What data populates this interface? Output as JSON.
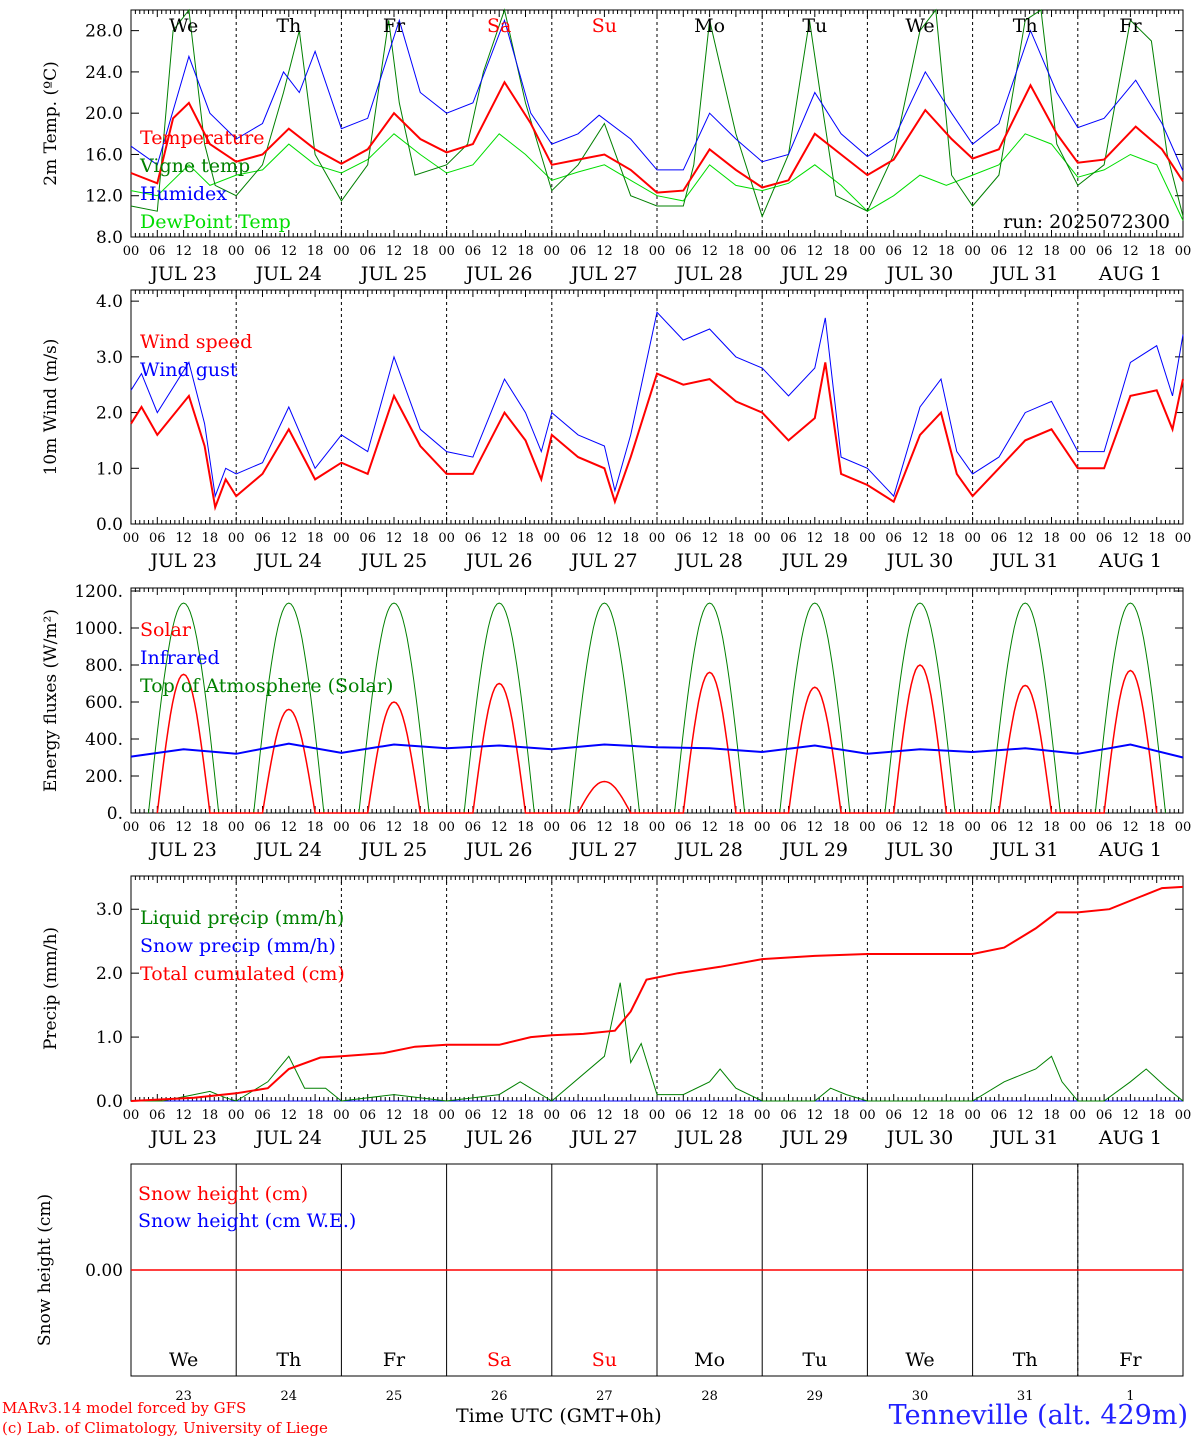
{
  "colors": {
    "temperature": "#ff0000",
    "vigne": "#008000",
    "humidex": "#0000ff",
    "dewpoint": "#00dd00",
    "wind_speed": "#ff0000",
    "wind_gust": "#0000ff",
    "solar": "#ff0000",
    "infrared": "#0000ff",
    "toa": "#008000",
    "liquid": "#008000",
    "snow_precip": "#0000ff",
    "cumulated": "#ff0000",
    "snow_h": "#ff0000",
    "weekend": "#ff0000",
    "location": "#2222ff",
    "credits": "#ff0000"
  },
  "time_axis": {
    "hour_labels": [
      "00",
      "06",
      "12",
      "18"
    ],
    "last_label": "00",
    "date_labels": [
      "JUL 23",
      "JUL 24",
      "JUL 25",
      "JUL 26",
      "JUL 27",
      "JUL 28",
      "JUL 29",
      "JUL 30",
      "JUL 31",
      "AUG  1"
    ],
    "weekdays": [
      "We",
      "Th",
      "Fr",
      "Sa",
      "Su",
      "Mo",
      "Tu",
      "We",
      "Th",
      "Fr"
    ],
    "weekend_days": [
      "Sa",
      "Su"
    ],
    "day_numbers": [
      "23",
      "24",
      "25",
      "26",
      "27",
      "28",
      "29",
      "30",
      "31",
      "1"
    ],
    "xlabel": "Time UTC (GMT+0h)"
  },
  "chart_data": [
    {
      "type": "line",
      "ylabel": "2m Temp. (ºC)",
      "ylim": [
        8,
        30
      ],
      "yticks": [
        "8.0",
        "12.0",
        "16.0",
        "20.0",
        "24.0",
        "28.0"
      ],
      "x_unit": "days from JUL 23 00 UTC",
      "run_label": "run: 2025072300",
      "series": [
        {
          "name": "Temperature",
          "key": "temperature",
          "x": [
            0,
            0.25,
            0.4,
            0.55,
            0.75,
            1.0,
            1.25,
            1.5,
            1.75,
            2.0,
            2.25,
            2.5,
            2.75,
            3.0,
            3.25,
            3.55,
            3.8,
            4.0,
            4.25,
            4.5,
            4.75,
            5.0,
            5.25,
            5.5,
            5.75,
            6.0,
            6.25,
            6.5,
            6.75,
            7.0,
            7.25,
            7.55,
            7.8,
            8.0,
            8.25,
            8.55,
            8.8,
            9.0,
            9.25,
            9.55,
            9.8,
            10.0
          ],
          "y": [
            14.2,
            13.2,
            19.5,
            21,
            17,
            15.3,
            16,
            18.5,
            16.5,
            15.1,
            16.5,
            20,
            17.5,
            16.2,
            17,
            23,
            19,
            15,
            15.5,
            16,
            14.5,
            12.3,
            12.5,
            16.5,
            14.5,
            12.8,
            13.5,
            18,
            16,
            14,
            15.5,
            20.3,
            17.5,
            15.6,
            16.5,
            22.7,
            18,
            15.2,
            15.5,
            18.7,
            16.5,
            13.4
          ]
        },
        {
          "name": "Vigne temp",
          "key": "vigne",
          "x": [
            0,
            0.25,
            0.4,
            0.55,
            0.7,
            0.8,
            1.0,
            1.25,
            1.45,
            1.6,
            1.75,
            2.0,
            2.25,
            2.45,
            2.55,
            2.7,
            3.0,
            3.2,
            3.35,
            3.55,
            3.75,
            4.0,
            4.25,
            4.5,
            4.75,
            5.0,
            5.25,
            5.35,
            5.5,
            5.75,
            6.0,
            6.25,
            6.45,
            6.55,
            6.7,
            7.0,
            7.25,
            7.5,
            7.65,
            7.8,
            8.0,
            8.25,
            8.5,
            8.65,
            8.8,
            9.0,
            9.25,
            9.5,
            9.7,
            9.85,
            10.0
          ],
          "y": [
            11,
            10.5,
            28,
            30,
            17,
            13,
            12,
            15,
            22,
            28,
            16,
            11.5,
            15,
            29,
            21,
            14,
            15,
            17,
            24,
            30,
            21,
            12.5,
            15,
            19,
            12,
            11,
            11,
            15,
            29,
            18,
            10,
            16,
            29,
            22,
            12,
            10.5,
            16,
            28,
            30,
            14,
            11,
            14,
            29,
            30,
            17,
            13,
            15,
            29,
            27,
            16,
            10
          ]
        },
        {
          "name": "Humidex",
          "key": "humidex",
          "x": [
            0,
            0.25,
            0.55,
            0.75,
            1.0,
            1.25,
            1.45,
            1.6,
            1.75,
            2.0,
            2.25,
            2.55,
            2.75,
            3.0,
            3.25,
            3.55,
            3.8,
            4.0,
            4.25,
            4.45,
            4.75,
            5.0,
            5.25,
            5.5,
            5.75,
            6.0,
            6.25,
            6.5,
            6.75,
            7.0,
            7.25,
            7.55,
            7.8,
            8.0,
            8.25,
            8.55,
            8.8,
            9.0,
            9.25,
            9.55,
            9.8,
            10.0
          ],
          "y": [
            16.8,
            15,
            25.5,
            20,
            17.5,
            19,
            24,
            22,
            26,
            18.5,
            19.5,
            29,
            22,
            20,
            21,
            29,
            20,
            17,
            18,
            19.8,
            17.5,
            14.5,
            14.5,
            20,
            17.5,
            15.3,
            16,
            22,
            18,
            15.8,
            17.5,
            24,
            20,
            17,
            19,
            28,
            22,
            18.6,
            19.5,
            23.2,
            19,
            14.4
          ]
        },
        {
          "name": "DewPoint Temp",
          "key": "dewpoint",
          "x": [
            0,
            0.25,
            0.55,
            0.75,
            1.0,
            1.25,
            1.5,
            1.75,
            2.0,
            2.25,
            2.5,
            2.75,
            3.0,
            3.25,
            3.5,
            3.75,
            4.0,
            4.25,
            4.5,
            4.75,
            5.0,
            5.25,
            5.5,
            5.75,
            6.0,
            6.25,
            6.5,
            6.75,
            7.0,
            7.25,
            7.5,
            7.75,
            8.0,
            8.25,
            8.5,
            8.75,
            9.0,
            9.25,
            9.5,
            9.75,
            10.0
          ],
          "y": [
            12.5,
            12,
            15,
            13,
            14,
            14.5,
            17,
            15,
            14.2,
            15.5,
            18,
            16,
            14.2,
            15,
            18,
            16,
            13.5,
            14.3,
            15,
            13.5,
            12,
            11.5,
            15,
            13,
            12.5,
            13.2,
            15,
            13,
            10.5,
            12,
            14,
            13,
            14,
            15,
            18,
            17,
            13.8,
            14.5,
            16,
            15,
            9.6
          ]
        }
      ]
    },
    {
      "type": "line",
      "ylabel": "10m Wind (m/s)",
      "ylim": [
        0,
        4
      ],
      "yticks": [
        "0.0",
        "1.0",
        "2.0",
        "3.0",
        "4.0"
      ],
      "series": [
        {
          "name": "Wind speed",
          "key": "wind_speed",
          "x": [
            0,
            0.1,
            0.25,
            0.55,
            0.7,
            0.8,
            0.9,
            1.0,
            1.25,
            1.5,
            1.75,
            2.0,
            2.25,
            2.5,
            2.75,
            3.0,
            3.25,
            3.55,
            3.75,
            3.9,
            4.0,
            4.25,
            4.5,
            4.6,
            4.75,
            5.0,
            5.25,
            5.5,
            5.75,
            6.0,
            6.25,
            6.5,
            6.6,
            6.75,
            7.0,
            7.25,
            7.5,
            7.7,
            7.85,
            8.0,
            8.25,
            8.5,
            8.75,
            9.0,
            9.25,
            9.5,
            9.75,
            9.9,
            10.0
          ],
          "y": [
            1.8,
            2.1,
            1.6,
            2.3,
            1.4,
            0.3,
            0.8,
            0.5,
            0.9,
            1.7,
            0.8,
            1.1,
            0.9,
            2.3,
            1.4,
            0.9,
            0.9,
            2.0,
            1.5,
            0.8,
            1.6,
            1.2,
            1.0,
            0.4,
            1.2,
            2.7,
            2.5,
            2.6,
            2.2,
            2.0,
            1.5,
            1.9,
            2.9,
            0.9,
            0.7,
            0.4,
            1.6,
            2.0,
            0.9,
            0.5,
            1.0,
            1.5,
            1.7,
            1.0,
            1.0,
            2.3,
            2.4,
            1.7,
            2.6
          ]
        },
        {
          "name": "Wind gust",
          "key": "wind_gust",
          "x": [
            0,
            0.1,
            0.25,
            0.55,
            0.7,
            0.8,
            0.9,
            1.0,
            1.25,
            1.5,
            1.75,
            2.0,
            2.25,
            2.5,
            2.75,
            3.0,
            3.25,
            3.55,
            3.75,
            3.9,
            4.0,
            4.25,
            4.5,
            4.6,
            4.75,
            5.0,
            5.25,
            5.5,
            5.75,
            6.0,
            6.25,
            6.5,
            6.6,
            6.75,
            7.0,
            7.25,
            7.5,
            7.7,
            7.85,
            8.0,
            8.25,
            8.5,
            8.75,
            9.0,
            9.25,
            9.5,
            9.75,
            9.9,
            10.0
          ],
          "y": [
            2.4,
            2.7,
            2.0,
            2.9,
            1.8,
            0.5,
            1.0,
            0.9,
            1.1,
            2.1,
            1.0,
            1.6,
            1.3,
            3.0,
            1.7,
            1.3,
            1.2,
            2.6,
            2.0,
            1.3,
            2.0,
            1.6,
            1.4,
            0.6,
            1.6,
            3.8,
            3.3,
            3.5,
            3.0,
            2.8,
            2.3,
            2.8,
            3.7,
            1.2,
            1.0,
            0.5,
            2.1,
            2.6,
            1.3,
            0.9,
            1.2,
            2.0,
            2.2,
            1.3,
            1.3,
            2.9,
            3.2,
            2.3,
            3.4
          ]
        }
      ]
    },
    {
      "type": "line",
      "ylabel": "Energy fluxes (W/m²)",
      "ylim": [
        0,
        1200
      ],
      "yticks": [
        "0.",
        "200.",
        "400.",
        "600.",
        "800.",
        "1000.",
        "1200."
      ],
      "solar_peaks": [
        750,
        560,
        600,
        700,
        170,
        760,
        680,
        800,
        690,
        770
      ],
      "toa_peak": 1135,
      "infrared": {
        "x": [
          0,
          0.5,
          1.0,
          1.5,
          2.0,
          2.5,
          3.0,
          3.5,
          4.0,
          4.5,
          5.0,
          5.5,
          6.0,
          6.5,
          7.0,
          7.5,
          8.0,
          8.5,
          9.0,
          9.5,
          10.0
        ],
        "y": [
          305,
          345,
          320,
          375,
          325,
          370,
          350,
          365,
          345,
          370,
          355,
          350,
          330,
          365,
          320,
          345,
          330,
          350,
          320,
          370,
          300
        ]
      },
      "series_names": {
        "solar": "Solar",
        "infrared": "Infrared",
        "toa": "Top of Atmosphere (Solar)"
      }
    },
    {
      "type": "line",
      "ylabel": "Precip (mm/h)",
      "ylim": [
        0,
        3.5
      ],
      "yticks": [
        "0.0",
        "1.0",
        "2.0",
        "3.0"
      ],
      "liquid": {
        "x": [
          0,
          0.3,
          0.6,
          0.75,
          0.9,
          1.0,
          1.3,
          1.5,
          1.65,
          1.85,
          2.0,
          2.5,
          3.0,
          3.5,
          3.7,
          4.0,
          4.5,
          4.65,
          4.75,
          4.85,
          5.0,
          5.25,
          5.5,
          5.6,
          5.75,
          6.0,
          6.5,
          6.65,
          6.8,
          7.0,
          8.0,
          8.3,
          8.6,
          8.75,
          8.85,
          9.0,
          9.25,
          9.5,
          9.65,
          9.85,
          10.0
        ],
        "y": [
          0,
          0,
          0.1,
          0.15,
          0.05,
          0,
          0.3,
          0.7,
          0.2,
          0.2,
          0,
          0.1,
          0,
          0.1,
          0.3,
          0,
          0.7,
          1.85,
          0.6,
          0.9,
          0.1,
          0.1,
          0.3,
          0.5,
          0.2,
          0,
          0,
          0.2,
          0.1,
          0,
          0,
          0.3,
          0.5,
          0.7,
          0.3,
          0,
          0,
          0.3,
          0.5,
          0.2,
          0
        ]
      },
      "snow_value": 0,
      "cumulated": {
        "x": [
          0,
          0.6,
          1.0,
          1.3,
          1.5,
          1.8,
          2.0,
          2.4,
          2.7,
          3.0,
          3.5,
          3.8,
          4.0,
          4.3,
          4.6,
          4.75,
          4.9,
          5.2,
          5.6,
          6.0,
          6.5,
          7.0,
          8.0,
          8.3,
          8.6,
          8.8,
          9.0,
          9.3,
          9.6,
          9.8,
          10.0
        ],
        "y": [
          0,
          0.05,
          0.12,
          0.2,
          0.5,
          0.68,
          0.7,
          0.75,
          0.85,
          0.88,
          0.88,
          1.0,
          1.03,
          1.05,
          1.1,
          1.4,
          1.9,
          2.0,
          2.1,
          2.22,
          2.27,
          2.3,
          2.3,
          2.4,
          2.7,
          2.95,
          2.95,
          3.0,
          3.2,
          3.33,
          3.35
        ]
      },
      "series_names": {
        "liquid": "Liquid precip (mm/h)",
        "snow": "Snow precip (mm/h)",
        "cumulated": "Total cumulated (cm)"
      }
    },
    {
      "type": "line",
      "ylabel": "Snow height (cm)",
      "yticks": [
        "0.00"
      ],
      "value": 0,
      "series_names": {
        "snow_h": "Snow height (cm)",
        "snow_we": "Snow height (cm W.E.)"
      }
    }
  ],
  "footer": {
    "credit_line1": "MARv3.14 model forced by GFS",
    "credit_line2": "(c) Lab. of Climatology, University of Liege",
    "location": "Tenneville (alt. 429m)"
  }
}
